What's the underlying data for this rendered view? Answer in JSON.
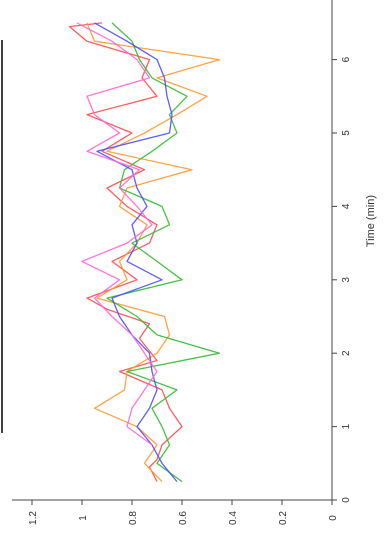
{
  "chart_data": {
    "type": "line",
    "orientation": "rotated-90",
    "xlabel": "Time (min)",
    "ylabel": "",
    "xlim": [
      0,
      6.8
    ],
    "ylim": [
      0,
      1.3
    ],
    "xticks": [
      "0",
      "1",
      "2",
      "3",
      "4",
      "5",
      "6"
    ],
    "yticks": [
      "0",
      "0.2",
      "0.4",
      "0.6",
      "0.8",
      "1",
      "1.2"
    ],
    "grid": false,
    "series": [
      {
        "color": "#ff4d4d",
        "points": [
          [
            0.25,
            0.7
          ],
          [
            0.45,
            0.73
          ],
          [
            0.55,
            0.7
          ],
          [
            0.75,
            0.68
          ],
          [
            1.0,
            0.6
          ],
          [
            1.25,
            0.65
          ],
          [
            1.5,
            0.68
          ],
          [
            1.75,
            0.85
          ],
          [
            1.9,
            0.7
          ],
          [
            2.2,
            0.77
          ],
          [
            2.4,
            0.73
          ],
          [
            2.6,
            0.9
          ],
          [
            2.75,
            0.98
          ],
          [
            3.0,
            0.78
          ],
          [
            3.25,
            0.88
          ],
          [
            3.5,
            0.73
          ],
          [
            3.75,
            0.7
          ],
          [
            4.0,
            0.82
          ],
          [
            4.25,
            0.9
          ],
          [
            4.5,
            0.75
          ],
          [
            4.75,
            0.92
          ],
          [
            5.0,
            0.8
          ],
          [
            5.25,
            0.98
          ],
          [
            5.5,
            0.7
          ],
          [
            5.75,
            0.76
          ],
          [
            6.0,
            0.73
          ],
          [
            6.25,
            0.98
          ],
          [
            6.45,
            1.05
          ],
          [
            6.5,
            0.92
          ]
        ]
      },
      {
        "color": "#ff9933",
        "points": [
          [
            0.25,
            0.68
          ],
          [
            0.5,
            0.75
          ],
          [
            0.75,
            0.7
          ],
          [
            1.0,
            0.78
          ],
          [
            1.25,
            0.95
          ],
          [
            1.5,
            0.83
          ],
          [
            1.75,
            0.82
          ],
          [
            2.0,
            0.7
          ],
          [
            2.25,
            0.65
          ],
          [
            2.5,
            0.67
          ],
          [
            2.75,
            0.94
          ],
          [
            3.0,
            0.82
          ],
          [
            3.25,
            0.85
          ],
          [
            3.5,
            0.78
          ],
          [
            3.75,
            0.74
          ],
          [
            4.0,
            0.85
          ],
          [
            4.25,
            0.82
          ],
          [
            4.5,
            0.56
          ],
          [
            4.75,
            0.9
          ],
          [
            5.0,
            0.75
          ],
          [
            5.25,
            0.62
          ],
          [
            5.5,
            0.5
          ],
          [
            5.75,
            0.7
          ],
          [
            6.0,
            0.45
          ],
          [
            6.25,
            0.95
          ],
          [
            6.5,
            0.98
          ]
        ]
      },
      {
        "color": "#33bb33",
        "points": [
          [
            0.25,
            0.6
          ],
          [
            0.5,
            0.7
          ],
          [
            0.75,
            0.65
          ],
          [
            1.0,
            0.68
          ],
          [
            1.25,
            0.72
          ],
          [
            1.5,
            0.62
          ],
          [
            1.75,
            0.82
          ],
          [
            2.0,
            0.45
          ],
          [
            2.25,
            0.7
          ],
          [
            2.5,
            0.78
          ],
          [
            2.75,
            0.9
          ],
          [
            3.0,
            0.6
          ],
          [
            3.25,
            0.7
          ],
          [
            3.5,
            0.8
          ],
          [
            3.75,
            0.65
          ],
          [
            4.0,
            0.68
          ],
          [
            4.25,
            0.85
          ],
          [
            4.5,
            0.83
          ],
          [
            4.75,
            0.72
          ],
          [
            5.0,
            0.62
          ],
          [
            5.25,
            0.65
          ],
          [
            5.5,
            0.58
          ],
          [
            5.75,
            0.72
          ],
          [
            6.0,
            0.77
          ],
          [
            6.25,
            0.8
          ],
          [
            6.5,
            0.88
          ]
        ]
      },
      {
        "color": "#4d4dff",
        "points": [
          [
            0.25,
            0.62
          ],
          [
            0.5,
            0.68
          ],
          [
            0.75,
            0.72
          ],
          [
            1.0,
            0.78
          ],
          [
            1.25,
            0.73
          ],
          [
            1.5,
            0.7
          ],
          [
            1.75,
            0.72
          ],
          [
            2.0,
            0.73
          ],
          [
            2.25,
            0.8
          ],
          [
            2.5,
            0.85
          ],
          [
            2.75,
            0.88
          ],
          [
            3.0,
            0.68
          ],
          [
            3.25,
            0.82
          ],
          [
            3.5,
            0.78
          ],
          [
            3.75,
            0.8
          ],
          [
            4.0,
            0.74
          ],
          [
            4.25,
            0.78
          ],
          [
            4.5,
            0.8
          ],
          [
            4.75,
            0.94
          ],
          [
            5.0,
            0.65
          ],
          [
            5.25,
            0.64
          ],
          [
            5.5,
            0.66
          ],
          [
            5.75,
            0.67
          ],
          [
            6.0,
            0.7
          ],
          [
            6.25,
            0.82
          ],
          [
            6.5,
            0.95
          ]
        ]
      },
      {
        "color": "#ff66dd",
        "points": [
          [
            0.75,
            0.72
          ],
          [
            1.0,
            0.82
          ],
          [
            1.25,
            0.8
          ],
          [
            1.5,
            0.75
          ],
          [
            1.75,
            0.7
          ],
          [
            2.0,
            0.75
          ],
          [
            2.25,
            0.8
          ],
          [
            2.5,
            0.88
          ],
          [
            2.75,
            0.95
          ],
          [
            3.0,
            0.85
          ],
          [
            3.25,
            1.0
          ],
          [
            3.5,
            0.82
          ],
          [
            3.75,
            0.72
          ],
          [
            4.0,
            0.78
          ],
          [
            4.25,
            0.85
          ],
          [
            4.5,
            0.77
          ],
          [
            4.75,
            0.98
          ],
          [
            5.0,
            0.85
          ],
          [
            5.25,
            0.95
          ],
          [
            5.5,
            0.98
          ],
          [
            5.75,
            0.73
          ],
          [
            6.0,
            0.78
          ],
          [
            6.25,
            0.88
          ],
          [
            6.5,
            1.02
          ]
        ]
      }
    ]
  }
}
